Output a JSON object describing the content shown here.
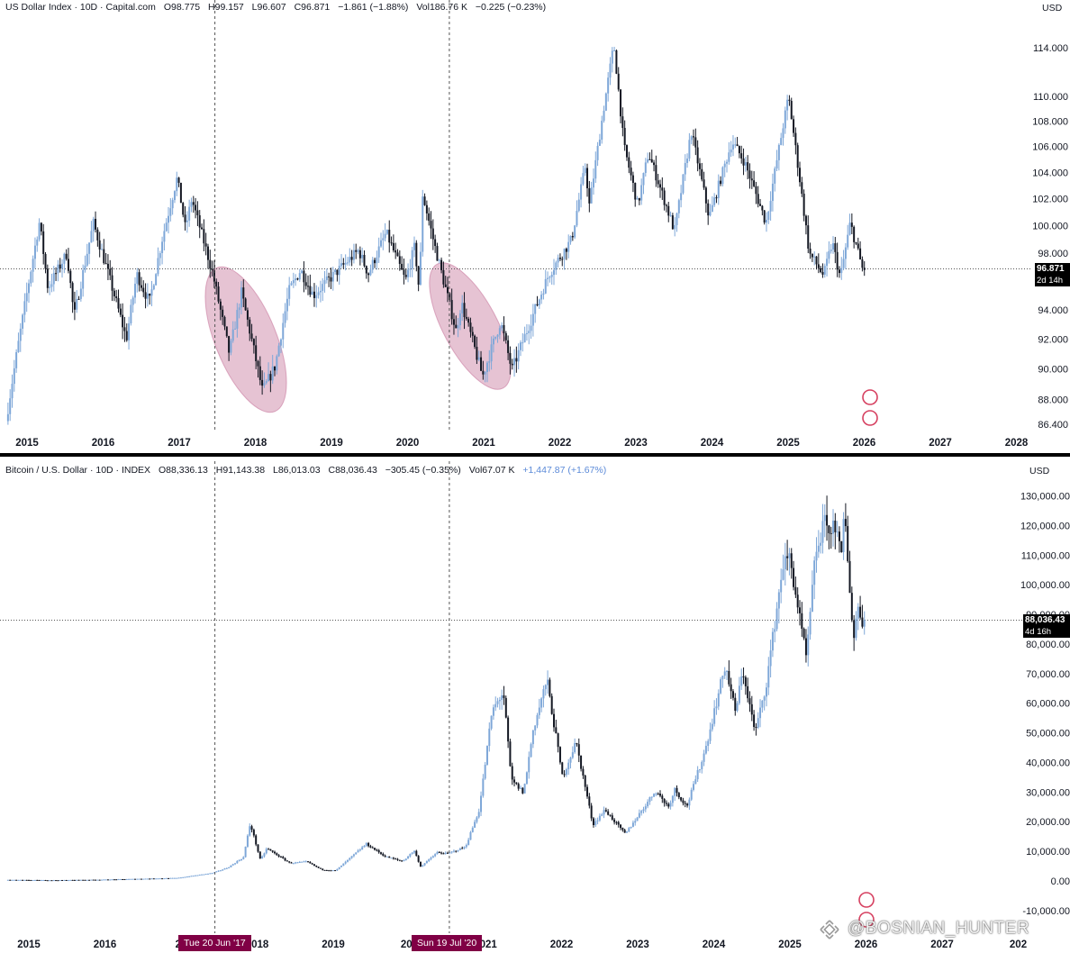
{
  "colors": {
    "up": "#7ea7d8",
    "down": "#131722",
    "ellipse": "#c46f97",
    "date_tag": "#800045",
    "price_tag": "#000000"
  },
  "top_panel": {
    "header": {
      "title": "US Dollar Index · 10D · Capital.com",
      "open": "O98.775",
      "high": "H99.157",
      "low": "L96.607",
      "close": "C96.871",
      "change": "−1.861 (−1.88%)",
      "volume": "Vol186.76 K",
      "extra": "−0.225 (−0.23%)"
    },
    "currency": "USD",
    "price_tag": {
      "value": "96.871",
      "countdown": "2d 14h"
    }
  },
  "bottom_panel": {
    "header": {
      "title": "Bitcoin / U.S. Dollar · 10D · INDEX",
      "open": "O88,336.13",
      "high": "H91,143.38",
      "low": "L86,013.03",
      "close": "C88,036.43",
      "change": "−305.45 (−0.35%)",
      "volume": "Vol67.07 K",
      "extra": "+1,447.87 (+1.67%)"
    },
    "currency": "USD",
    "price_tag": {
      "value": "88,036.43",
      "countdown": "4d 16h"
    }
  },
  "date_markers": [
    "Tue 20 Jun '17",
    "Sun 19 Jul '20"
  ],
  "watermark": "@BOSNIAN_HUNTER",
  "chart_data": [
    {
      "type": "candlestick",
      "title": "US Dollar Index · 10D · Capital.com",
      "x_ticks": [
        "2015",
        "2016",
        "2017",
        "2018",
        "2019",
        "2020",
        "2021",
        "2022",
        "2023",
        "2024",
        "2025",
        "2026",
        "2027",
        "2028"
      ],
      "y_ticks": [
        "86.400",
        "88.000",
        "90.000",
        "92.000",
        "94.000",
        "96.000",
        "98.000",
        "100.000",
        "102.000",
        "104.000",
        "106.000",
        "108.000",
        "110.000",
        "114.000"
      ],
      "y_scale": "log",
      "ylim": [
        86.4,
        116
      ],
      "last_value": 96.871,
      "path": [
        [
          "2014-10-01",
          86.6
        ],
        [
          "2015-03-10",
          100.3
        ],
        [
          "2015-04-20",
          95.5
        ],
        [
          "2015-07-20",
          98.0
        ],
        [
          "2015-08-24",
          93.5
        ],
        [
          "2015-11-25",
          100.2
        ],
        [
          "2016-05-01",
          92.0
        ],
        [
          "2016-06-20",
          96.5
        ],
        [
          "2016-08-20",
          94.5
        ],
        [
          "2016-10-20",
          99.0
        ],
        [
          "2017-01-01",
          103.6
        ],
        [
          "2017-02-10",
          99.8
        ],
        [
          "2017-03-10",
          102.0
        ],
        [
          "2017-06-20",
          96.5
        ],
        [
          "2017-09-08",
          91.0
        ],
        [
          "2017-11-05",
          95.2
        ],
        [
          "2018-02-15",
          88.5
        ],
        [
          "2018-04-15",
          90.2
        ],
        [
          "2018-06-20",
          95.3
        ],
        [
          "2018-08-15",
          96.8
        ],
        [
          "2018-10-15",
          95.0
        ],
        [
          "2019-05-20",
          98.2
        ],
        [
          "2019-07-05",
          96.5
        ],
        [
          "2019-09-30",
          99.5
        ],
        [
          "2020-01-01",
          96.0
        ],
        [
          "2020-02-15",
          98.5
        ],
        [
          "2020-03-08",
          95.0
        ],
        [
          "2020-03-20",
          102.5
        ],
        [
          "2020-05-20",
          98.5
        ],
        [
          "2020-07-19",
          95.0
        ],
        [
          "2020-09-01",
          92.5
        ],
        [
          "2020-09-25",
          94.5
        ],
        [
          "2021-01-06",
          89.5
        ],
        [
          "2021-03-31",
          93.2
        ],
        [
          "2021-05-25",
          89.9
        ],
        [
          "2021-11-20",
          96.5
        ],
        [
          "2022-03-07",
          99.0
        ],
        [
          "2022-05-12",
          104.5
        ],
        [
          "2022-06-01",
          101.5
        ],
        [
          "2022-09-27",
          114.3
        ],
        [
          "2022-11-15",
          106.0
        ],
        [
          "2023-01-20",
          101.5
        ],
        [
          "2023-03-10",
          105.5
        ],
        [
          "2023-07-14",
          99.6
        ],
        [
          "2023-10-03",
          107.2
        ],
        [
          "2023-12-28",
          100.6
        ],
        [
          "2024-04-16",
          106.4
        ],
        [
          "2024-06-15",
          104.8
        ],
        [
          "2024-09-27",
          100.2
        ],
        [
          "2025-01-13",
          110.0
        ],
        [
          "2025-04-21",
          98.0
        ],
        [
          "2025-06-30",
          96.4
        ],
        [
          "2025-08-10",
          98.8
        ],
        [
          "2025-09-18",
          96.2
        ],
        [
          "2025-11-05",
          100.2
        ],
        [
          "2026-01-02",
          96.9
        ]
      ]
    },
    {
      "type": "candlestick",
      "title": "Bitcoin / U.S. Dollar · 10D · INDEX",
      "x_ticks": [
        "2015",
        "2016",
        "20",
        "2018",
        "2019",
        "202",
        "2021",
        "2022",
        "2023",
        "2024",
        "2025",
        "2026",
        "2027",
        "202"
      ],
      "y_ticks": [
        "-10,000.00",
        "0.00",
        "10,000.00",
        "20,000.00",
        "30,000.00",
        "40,000.00",
        "50,000.00",
        "60,000.00",
        "70,000.00",
        "80,000.00",
        "90,000.00",
        "100,000.00",
        "110,000.00",
        "120,000.00",
        "130,000.00"
      ],
      "y_scale": "linear",
      "ylim": [
        -14000,
        133000
      ],
      "last_value": 88036.43,
      "path": [
        [
          "2014-10-01",
          350
        ],
        [
          "2015-06-01",
          250
        ],
        [
          "2016-01-01",
          430
        ],
        [
          "2016-06-20",
          700
        ],
        [
          "2017-01-01",
          1000
        ],
        [
          "2017-06-20",
          2700
        ],
        [
          "2017-09-01",
          4500
        ],
        [
          "2017-11-15",
          8000
        ],
        [
          "2017-12-17",
          19500
        ],
        [
          "2018-02-05",
          7000
        ],
        [
          "2018-03-05",
          11000
        ],
        [
          "2018-06-25",
          6000
        ],
        [
          "2018-09-15",
          6500
        ],
        [
          "2018-11-25",
          3800
        ],
        [
          "2019-02-01",
          3500
        ],
        [
          "2019-06-26",
          12500
        ],
        [
          "2019-09-25",
          8300
        ],
        [
          "2019-12-18",
          6600
        ],
        [
          "2020-02-12",
          10300
        ],
        [
          "2020-03-13",
          4800
        ],
        [
          "2020-06-01",
          9600
        ],
        [
          "2020-07-19",
          9200
        ],
        [
          "2020-10-15",
          11500
        ],
        [
          "2020-12-20",
          24000
        ],
        [
          "2021-02-20",
          57000
        ],
        [
          "2021-04-14",
          64000
        ],
        [
          "2021-05-22",
          34000
        ],
        [
          "2021-07-20",
          29800
        ],
        [
          "2021-09-05",
          51000
        ],
        [
          "2021-11-10",
          68000
        ],
        [
          "2022-01-24",
          35000
        ],
        [
          "2022-03-28",
          47000
        ],
        [
          "2022-06-18",
          19000
        ],
        [
          "2022-08-15",
          24000
        ],
        [
          "2022-11-21",
          15800
        ],
        [
          "2023-04-14",
          30500
        ],
        [
          "2023-06-15",
          25000
        ],
        [
          "2023-07-15",
          31000
        ],
        [
          "2023-09-11",
          25000
        ],
        [
          "2023-12-08",
          44000
        ],
        [
          "2024-03-14",
          73000
        ],
        [
          "2024-05-01",
          57000
        ],
        [
          "2024-06-07",
          71000
        ],
        [
          "2024-08-05",
          50000
        ],
        [
          "2024-09-27",
          66000
        ],
        [
          "2024-12-17",
          107000
        ],
        [
          "2025-01-20",
          109000
        ],
        [
          "2025-04-07",
          75000
        ],
        [
          "2025-05-22",
          111000
        ],
        [
          "2025-07-14",
          123000
        ],
        [
          "2025-08-01",
          113000
        ],
        [
          "2025-08-14",
          124000
        ],
        [
          "2025-09-25",
          108000
        ],
        [
          "2025-10-06",
          126000
        ],
        [
          "2025-11-21",
          81000
        ],
        [
          "2025-12-10",
          93000
        ],
        [
          "2026-01-02",
          88036
        ]
      ]
    }
  ]
}
